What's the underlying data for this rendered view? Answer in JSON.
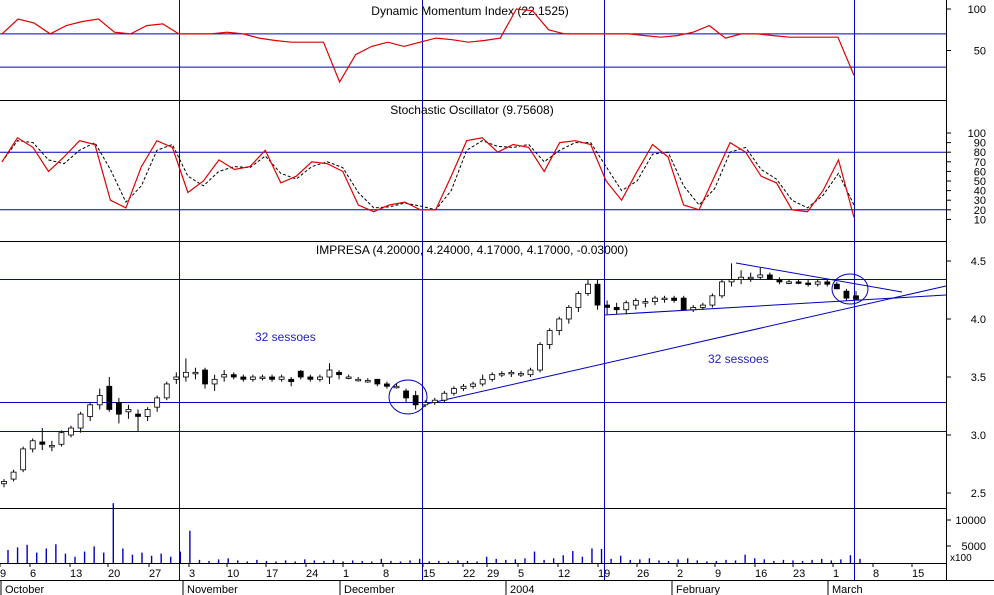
{
  "chart_data": {
    "type": "candlestick",
    "panels": {
      "dmi": {
        "title": "Dynamic Momentum Index (22.1525)",
        "yticks": [
          "100",
          "50"
        ],
        "level_lines": [
          70,
          30
        ],
        "values": [
          70,
          88,
          83,
          70,
          80,
          85,
          88,
          72,
          70,
          80,
          82,
          70,
          70,
          70,
          72,
          70,
          65,
          62,
          60,
          60,
          60,
          12,
          45,
          55,
          60,
          55,
          60,
          65,
          63,
          60,
          62,
          65,
          100,
          98,
          75,
          70,
          70,
          70,
          70,
          70,
          68,
          66,
          68,
          72,
          80,
          65,
          70,
          70,
          68,
          66,
          66,
          66,
          66,
          20
        ]
      },
      "stochastic": {
        "title": "Stochastic Oscillator (9.75608)",
        "yticks": [
          "100",
          "90",
          "80",
          "70",
          "60",
          "50",
          "40",
          "30",
          "20",
          "10"
        ],
        "level_lines": [
          80,
          20
        ],
        "k": [
          70,
          95,
          85,
          60,
          75,
          92,
          88,
          30,
          22,
          65,
          92,
          85,
          38,
          50,
          72,
          62,
          65,
          82,
          48,
          55,
          70,
          68,
          60,
          25,
          18,
          25,
          28,
          20,
          20,
          55,
          92,
          95,
          80,
          88,
          85,
          60,
          90,
          92,
          88,
          50,
          30,
          60,
          88,
          75,
          25,
          20,
          55,
          90,
          80,
          55,
          48,
          20,
          18,
          40,
          72,
          12
        ],
        "d": [
          70,
          92,
          90,
          72,
          68,
          82,
          90,
          62,
          28,
          45,
          82,
          88,
          55,
          45,
          60,
          65,
          64,
          76,
          58,
          52,
          65,
          70,
          64,
          38,
          22,
          23,
          27,
          24,
          20,
          40,
          82,
          92,
          86,
          85,
          88,
          70,
          82,
          90,
          90,
          65,
          40,
          50,
          78,
          80,
          45,
          25,
          42,
          80,
          85,
          62,
          52,
          30,
          22,
          35,
          58,
          25
        ]
      },
      "price": {
        "title": "IMPRESA (4.20000, 4.24000, 4.17000, 4.17000, -0.03000)",
        "yticks": [
          "4.5",
          "4.0",
          "3.5",
          "3.0",
          "2.5"
        ],
        "level_lines": [
          4.34,
          3.28,
          3.03
        ],
        "ohlc": [
          [
            2.58,
            2.62,
            2.55,
            2.6
          ],
          [
            2.62,
            2.7,
            2.6,
            2.68
          ],
          [
            2.7,
            2.9,
            2.68,
            2.88
          ],
          [
            2.88,
            2.97,
            2.85,
            2.95
          ],
          [
            2.94,
            3.06,
            2.87,
            2.92
          ],
          [
            2.9,
            2.95,
            2.86,
            2.91
          ],
          [
            2.92,
            3.04,
            2.9,
            3.02
          ],
          [
            3.0,
            3.08,
            2.98,
            3.06
          ],
          [
            3.06,
            3.2,
            3.02,
            3.18
          ],
          [
            3.16,
            3.28,
            3.12,
            3.26
          ],
          [
            3.26,
            3.4,
            3.22,
            3.34
          ],
          [
            3.42,
            3.5,
            3.2,
            3.22
          ],
          [
            3.28,
            3.32,
            3.1,
            3.18
          ],
          [
            3.2,
            3.26,
            3.14,
            3.22
          ],
          [
            3.18,
            3.22,
            3.03,
            3.16
          ],
          [
            3.16,
            3.24,
            3.12,
            3.22
          ],
          [
            3.24,
            3.34,
            3.2,
            3.32
          ],
          [
            3.32,
            3.46,
            3.3,
            3.44
          ],
          [
            3.48,
            3.54,
            3.44,
            3.5
          ],
          [
            3.5,
            3.66,
            3.46,
            3.54
          ],
          [
            3.54,
            3.58,
            3.48,
            3.54
          ],
          [
            3.56,
            3.58,
            3.4,
            3.44
          ],
          [
            3.44,
            3.52,
            3.38,
            3.48
          ],
          [
            3.5,
            3.56,
            3.46,
            3.52
          ],
          [
            3.52,
            3.54,
            3.48,
            3.5
          ],
          [
            3.5,
            3.52,
            3.46,
            3.48
          ],
          [
            3.48,
            3.52,
            3.46,
            3.5
          ],
          [
            3.5,
            3.52,
            3.47,
            3.5
          ],
          [
            3.5,
            3.52,
            3.46,
            3.48
          ],
          [
            3.48,
            3.52,
            3.46,
            3.5
          ],
          [
            3.48,
            3.5,
            3.42,
            3.46
          ],
          [
            3.55,
            3.56,
            3.48,
            3.5
          ],
          [
            3.5,
            3.52,
            3.46,
            3.48
          ],
          [
            3.48,
            3.52,
            3.46,
            3.5
          ],
          [
            3.5,
            3.62,
            3.44,
            3.56
          ],
          [
            3.54,
            3.56,
            3.48,
            3.52
          ],
          [
            3.5,
            3.52,
            3.48,
            3.5
          ],
          [
            3.48,
            3.5,
            3.46,
            3.48
          ],
          [
            3.47,
            3.49,
            3.45,
            3.47
          ],
          [
            3.48,
            3.48,
            3.42,
            3.44
          ],
          [
            3.44,
            3.46,
            3.4,
            3.42
          ],
          [
            3.42,
            3.44,
            3.4,
            3.42
          ],
          [
            3.38,
            3.4,
            3.28,
            3.32
          ],
          [
            3.34,
            3.38,
            3.22,
            3.26
          ],
          [
            3.26,
            3.3,
            3.24,
            3.28
          ],
          [
            3.28,
            3.32,
            3.26,
            3.3
          ],
          [
            3.3,
            3.38,
            3.28,
            3.36
          ],
          [
            3.36,
            3.42,
            3.34,
            3.4
          ],
          [
            3.4,
            3.44,
            3.38,
            3.42
          ],
          [
            3.42,
            3.46,
            3.4,
            3.44
          ],
          [
            3.44,
            3.52,
            3.42,
            3.48
          ],
          [
            3.48,
            3.54,
            3.46,
            3.52
          ],
          [
            3.52,
            3.55,
            3.5,
            3.53
          ],
          [
            3.53,
            3.56,
            3.5,
            3.54
          ],
          [
            3.52,
            3.55,
            3.5,
            3.53
          ],
          [
            3.52,
            3.58,
            3.5,
            3.56
          ],
          [
            3.56,
            3.8,
            3.54,
            3.78
          ],
          [
            3.78,
            3.92,
            3.74,
            3.9
          ],
          [
            3.9,
            4.02,
            3.86,
            4.0
          ],
          [
            4.0,
            4.12,
            3.96,
            4.1
          ],
          [
            4.1,
            4.24,
            4.06,
            4.22
          ],
          [
            4.22,
            4.34,
            4.2,
            4.3
          ],
          [
            4.3,
            4.34,
            4.08,
            4.12
          ],
          [
            4.12,
            4.16,
            4.04,
            4.1
          ],
          [
            4.1,
            4.14,
            4.04,
            4.08
          ],
          [
            4.08,
            4.16,
            4.04,
            4.14
          ],
          [
            4.12,
            4.18,
            4.08,
            4.16
          ],
          [
            4.14,
            4.18,
            4.1,
            4.15
          ],
          [
            4.15,
            4.2,
            4.12,
            4.18
          ],
          [
            4.18,
            4.2,
            4.14,
            4.18
          ],
          [
            4.18,
            4.2,
            4.14,
            4.16
          ],
          [
            4.18,
            4.2,
            4.08,
            4.08
          ],
          [
            4.08,
            4.12,
            4.06,
            4.1
          ],
          [
            4.1,
            4.14,
            4.08,
            4.12
          ],
          [
            4.12,
            4.22,
            4.1,
            4.2
          ],
          [
            4.2,
            4.34,
            4.18,
            4.32
          ],
          [
            4.32,
            4.48,
            4.28,
            4.34
          ],
          [
            4.34,
            4.42,
            4.3,
            4.36
          ],
          [
            4.36,
            4.4,
            4.32,
            4.36
          ],
          [
            4.36,
            4.44,
            4.34,
            4.38
          ],
          [
            4.38,
            4.4,
            4.34,
            4.34
          ],
          [
            4.34,
            4.36,
            4.3,
            4.32
          ],
          [
            4.32,
            4.34,
            4.3,
            4.32
          ],
          [
            4.32,
            4.34,
            4.3,
            4.31
          ],
          [
            4.31,
            4.34,
            4.28,
            4.3
          ],
          [
            4.3,
            4.34,
            4.28,
            4.32
          ],
          [
            4.32,
            4.34,
            4.28,
            4.3
          ],
          [
            4.3,
            4.32,
            4.26,
            4.26
          ],
          [
            4.24,
            4.26,
            4.16,
            4.18
          ],
          [
            4.2,
            4.24,
            4.17,
            4.17
          ]
        ],
        "annotations": [
          "32 sessoes",
          "32 sessoes"
        ]
      },
      "volume": {
        "yticks": [
          "10000",
          "5000"
        ],
        "unit_label": "x100",
        "values": [
          2500,
          3000,
          3500,
          2000,
          2800,
          3600,
          1800,
          1200,
          2200,
          3200,
          2000,
          11500,
          2800,
          1600,
          2000,
          1400,
          1800,
          1200,
          2200,
          6200,
          600,
          400,
          700,
          900,
          500,
          300,
          600,
          400,
          300,
          500,
          300,
          700,
          500,
          400,
          600,
          300,
          500,
          400,
          300,
          800,
          400,
          300,
          500,
          800,
          300,
          400,
          300,
          500,
          400,
          300,
          1200,
          800,
          600,
          700,
          900,
          2200,
          600,
          900,
          1500,
          2300,
          1200,
          2800,
          2700,
          800,
          1400,
          600,
          700,
          900,
          500,
          400,
          700,
          900,
          500,
          300,
          400,
          600,
          500,
          1600,
          900,
          700,
          400,
          600,
          500,
          400,
          600,
          800,
          500,
          700,
          1500,
          800
        ]
      }
    },
    "x_axis": {
      "day_labels": [
        "9",
        "6",
        "13",
        "20",
        "27",
        "3",
        "10",
        "17",
        "24",
        "1",
        "8",
        "15",
        "22",
        "29",
        "5",
        "12",
        "19",
        "26",
        "2",
        "9",
        "16",
        "23",
        "1",
        "8",
        "15"
      ],
      "month_labels": [
        "October",
        "November",
        "December",
        "2004",
        "February",
        "March"
      ]
    },
    "colors": {
      "dmi_line": "#e00000",
      "k_line": "#e00000",
      "d_line": "#000000",
      "grid": "#0000c0",
      "trend": "#0000c0",
      "candle_up": "#ffffff",
      "candle_down": "#000000",
      "volume": "#0000c0",
      "annotation": "#2020c0"
    }
  }
}
